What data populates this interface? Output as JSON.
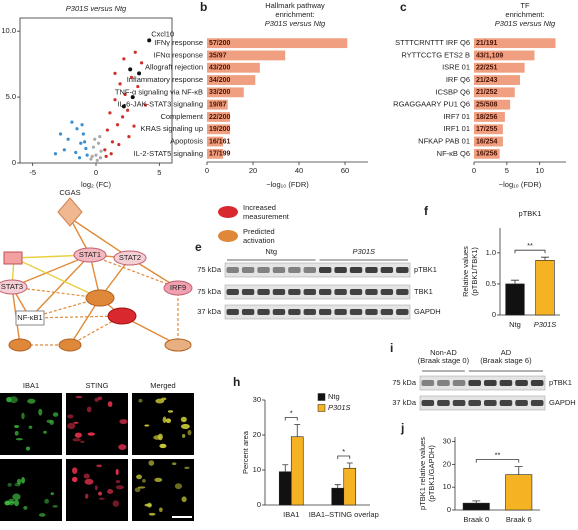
{
  "chart_data": [
    {
      "type": "scatter",
      "title": "P301S versus Ntg",
      "xlabel": "log₂ (FC)",
      "xlim": [
        -6,
        6
      ],
      "xticks": [
        -5,
        0,
        5
      ],
      "ylim": [
        0,
        11
      ],
      "yticks": [
        0,
        {
          "value": 5,
          "label": "5.0"
        },
        {
          "value": 10,
          "label": "10.0"
        }
      ],
      "series": [
        {
          "color": "#3a8fd0",
          "x": [
            -2.8,
            -2.2,
            -1.9,
            -1.5,
            -1.2,
            -1.0,
            -0.8,
            -0.7,
            -2.5,
            -1.6,
            -1.1,
            -0.9,
            -3.2,
            -1.3
          ],
          "values": [
            2.2,
            1.8,
            3.1,
            2.6,
            1.5,
            2.2,
            1.1,
            0.6,
            1.0,
            0.8,
            2.9,
            1.6,
            0.7,
            0.4
          ]
        },
        {
          "color": "#aaaaaa",
          "x": [
            -0.4,
            -0.2,
            0,
            0.2,
            0.4,
            -0.3,
            0.1,
            0.3,
            -0.1,
            0.35
          ],
          "values": [
            0.3,
            1.2,
            0.6,
            1.5,
            0.9,
            0.5,
            0.2,
            2.0,
            1.8,
            0.4
          ]
        },
        {
          "color": "#d0302a",
          "x": [
            0.7,
            0.9,
            1.1,
            1.3,
            1.5,
            1.7,
            1.9,
            2.1,
            2.3,
            2.5,
            2.8,
            3.0,
            3.3,
            3.6,
            3.9,
            1.2,
            1.8,
            2.6,
            0.8,
            1.5,
            2.2,
            3.1
          ],
          "values": [
            1.0,
            2.5,
            3.8,
            1.6,
            4.8,
            2.9,
            6.0,
            3.5,
            5.2,
            4.0,
            6.5,
            2.8,
            5.8,
            7.6,
            4.4,
            0.7,
            1.4,
            2.0,
            0.5,
            6.8,
            7.9,
            8.4
          ]
        },
        {
          "color": "#111111",
          "x": [
            4.2,
            2.7,
            3.4,
            2.9,
            2.2
          ],
          "values": [
            9.3,
            7.1,
            6.8,
            5.0,
            4.3
          ],
          "labels": [
            "Cxcl10",
            null,
            null,
            null,
            null
          ]
        }
      ]
    },
    {
      "type": "hbar",
      "panel": "b",
      "title": [
        "Hallmark pathway",
        "enrichment:",
        "P301S versus Ntg"
      ],
      "xlabel": "−log₁₀ (FDR)",
      "categories": [
        "IFNγ response",
        "IFNα response",
        "Allograft rejection",
        "Inflammatory response",
        "TNF-α signaling via NF-κB",
        "IL-6-JAK-STAT3 signaling",
        "Complement",
        "KRAS signaling up",
        "Apoptosis",
        "IL-2-STAT5 signaling"
      ],
      "values": [
        61,
        34,
        23,
        21,
        16,
        9,
        10,
        10,
        7,
        7
      ],
      "gene_counts": [
        "57/200",
        "35/97",
        "43/200",
        "34/200",
        "33/200",
        "19/87",
        "22/200",
        "19/200",
        "16/161",
        "17/199"
      ],
      "color": "#f0a080",
      "xlim": [
        0,
        70
      ],
      "xticks": [
        0,
        20,
        40,
        60
      ]
    },
    {
      "type": "hbar",
      "panel": "c",
      "title": [
        "TF",
        "enrichment:",
        "P301S versus Ntg"
      ],
      "xlabel": "−log₁₀ (FDR)",
      "categories": [
        "STTTCRNTTT IRF Q6",
        "RYTTCCTG ETS2 B",
        "ISRE 01",
        "IRF Q6",
        "ICSBP Q6",
        "RGAGGAARY PU1 Q6",
        "IRF7 01",
        "IRF1 01",
        "NFKAP PAB 01",
        "NF-κB Q6"
      ],
      "values": [
        12.4,
        9.2,
        7.7,
        7,
        6.2,
        5.5,
        4.7,
        4.4,
        4.4,
        3.9
      ],
      "gene_counts": [
        "21/191",
        "43/1,109",
        "22/251",
        "21/243",
        "21/252",
        "25/508",
        "18/256",
        "17/255",
        "16/254",
        "16/256"
      ],
      "color": "#f0a080",
      "xlim": [
        0,
        14
      ],
      "xticks": [
        0,
        5,
        10
      ]
    },
    {
      "type": "bar",
      "panel": "f",
      "title": "pTBK1",
      "ylabel": [
        "Relative values",
        "(pTBK1/TBK1)"
      ],
      "categories": [
        "Ntg",
        "P301S"
      ],
      "values": [
        0.5,
        0.88
      ],
      "errors": [
        0.06,
        0.05
      ],
      "colors": [
        "#111111",
        "#f5b324"
      ],
      "ylim": [
        0,
        1.4
      ],
      "yticks": [
        0,
        0.5,
        {
          "value": 1,
          "label": "1.0"
        }
      ],
      "significance": "**"
    },
    {
      "type": "grouped_bar",
      "panel": "h",
      "ylabel": "Percent area",
      "categories": [
        "IBA1",
        "IBA1–STING overlap"
      ],
      "series": [
        {
          "name": "Ntg",
          "color": "#111111",
          "values": [
            9.5,
            4.8
          ],
          "errors": [
            2,
            1
          ]
        },
        {
          "name": "P301S",
          "color": "#f5b324",
          "values": [
            19.5,
            10.5
          ],
          "errors": [
            3.5,
            1.5
          ]
        }
      ],
      "ylim": [
        0,
        30
      ],
      "yticks": [
        0,
        10,
        20,
        30
      ],
      "significance": [
        "*",
        "*"
      ]
    },
    {
      "type": "bar",
      "panel": "j",
      "ylabel": [
        "pTBK1 relative values",
        "(pTBK1/GAPDH)"
      ],
      "categories": [
        "Braak 0",
        "Braak 6"
      ],
      "values": [
        3,
        15.5
      ],
      "errors": [
        1,
        3.5
      ],
      "colors": [
        "#111111",
        "#f5b324"
      ],
      "ylim": [
        0,
        32
      ],
      "yticks": [
        0,
        10,
        20,
        30
      ],
      "significance": "**"
    }
  ],
  "network": {
    "nodes": [
      "CGAS",
      "STAT1",
      "STAT2",
      "IRF9",
      "STAT3",
      "NF-κB1"
    ],
    "legend": [
      [
        "Increased",
        "measurement"
      ],
      [
        "Predicted",
        "activation"
      ]
    ]
  },
  "microscopy": {
    "channels": [
      "IBA1",
      "STING",
      "Merged"
    ]
  },
  "blot_e": {
    "panel": "e",
    "groups": [
      "Ntg",
      "P301S"
    ],
    "sizes": [
      "75 kDa",
      "75 kDa",
      "37 kDa"
    ],
    "proteins": [
      "pTBK1",
      "TBK1",
      "GAPDH"
    ]
  },
  "blot_i": {
    "panel": "i",
    "groups": [
      [
        "Non-AD",
        "(Braak stage 0)"
      ],
      [
        "AD",
        "(Braak stage 6)"
      ]
    ],
    "sizes": [
      "75 kDa",
      "37 kDa"
    ],
    "proteins": [
      "pTBK1",
      "GAPDH"
    ]
  }
}
